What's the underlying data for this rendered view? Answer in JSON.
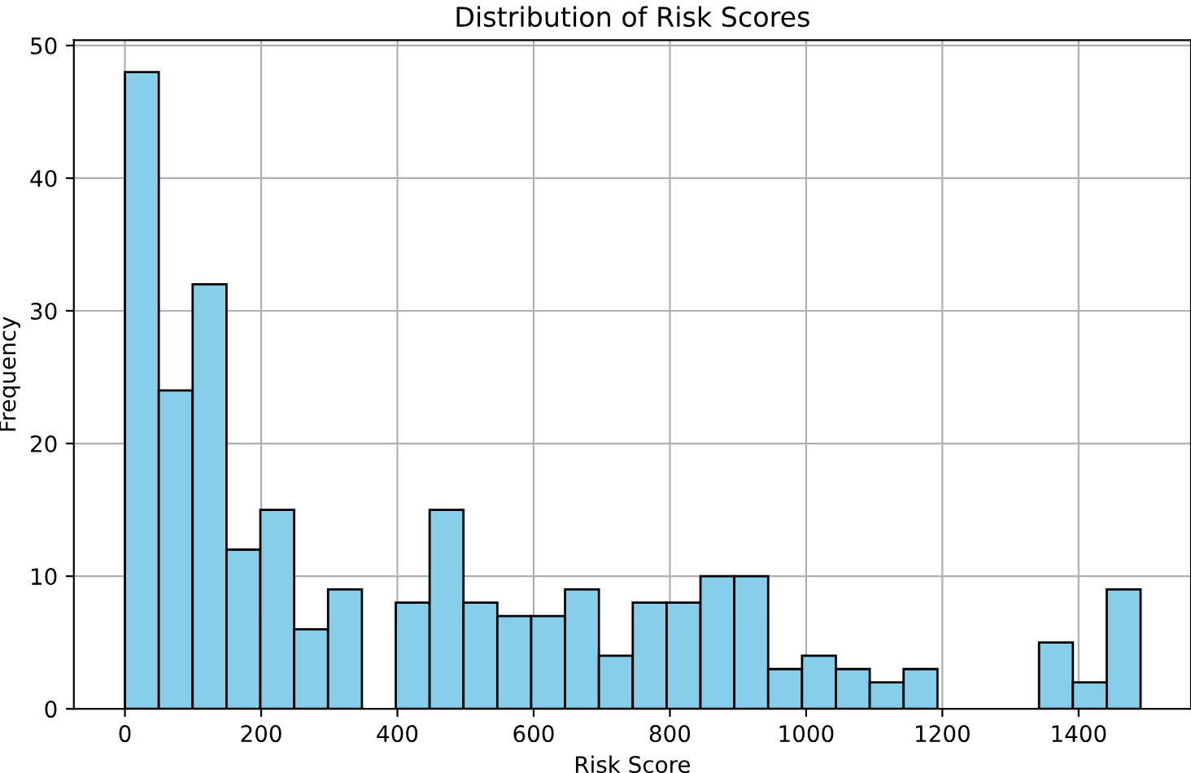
{
  "chart_data": {
    "type": "histogram",
    "title": "Distribution of Risk Scores",
    "xlabel": "Risk Score",
    "ylabel": "Frequency",
    "bins": [
      0,
      49.7,
      99.4,
      149.1,
      198.8,
      248.5,
      298.2,
      347.9,
      397.6,
      447.3,
      497,
      546.7,
      596.4,
      646.1,
      695.8,
      745.5,
      795.2,
      844.9,
      894.6,
      944.3,
      994,
      1043.7,
      1093.4,
      1143.1,
      1192.8,
      1242.5,
      1292.2,
      1341.9,
      1391.6,
      1441.3,
      1491
    ],
    "values": [
      48,
      24,
      32,
      12,
      15,
      6,
      9,
      0,
      8,
      15,
      8,
      7,
      7,
      9,
      4,
      8,
      8,
      10,
      10,
      3,
      4,
      3,
      2,
      3,
      0,
      0,
      0,
      5,
      2,
      9
    ],
    "color": "#87ceeb",
    "xlim": [
      -75,
      1565
    ],
    "ylim": [
      0,
      50.4
    ],
    "xticks": [
      0,
      200,
      400,
      600,
      800,
      1000,
      1200,
      1400
    ],
    "yticks": [
      0,
      10,
      20,
      30,
      40,
      50
    ],
    "grid": true
  }
}
